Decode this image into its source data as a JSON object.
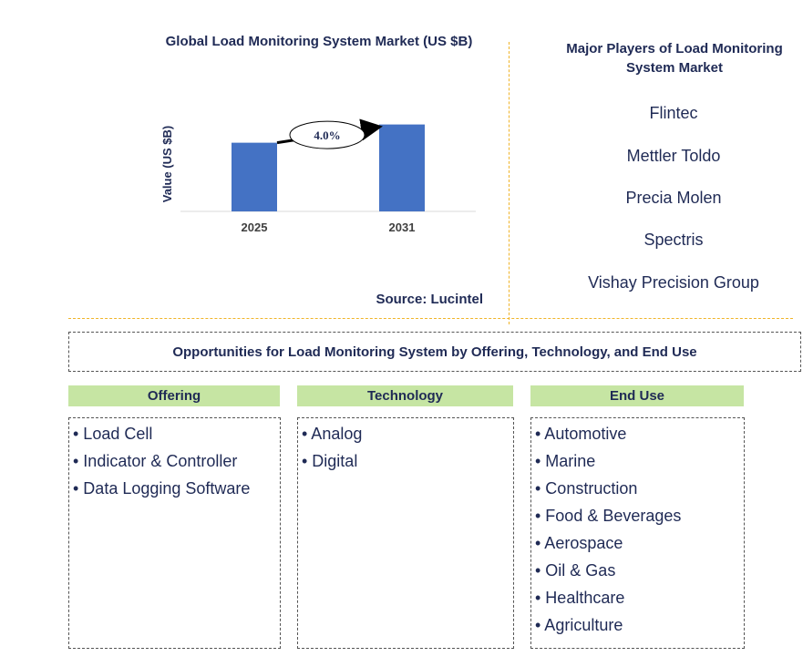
{
  "chart_data": {
    "type": "bar",
    "title": "Global Load Monitoring System Market (US $B)",
    "ylabel": "Value (US $B)",
    "categories": [
      "2025",
      "2031"
    ],
    "values": [
      6.4,
      8.1
    ],
    "ylim": [
      0,
      9
    ],
    "annotation": "4.0%",
    "bar_color": "#4472c4",
    "source": "Source: Lucintel"
  },
  "players": {
    "title": "Major Players of Load Monitoring System Market",
    "items": [
      "Flintec",
      "Mettler Toldo",
      "Precia Molen",
      "Spectris",
      "Vishay Precision Group"
    ]
  },
  "opportunities": {
    "title": "Opportunities for Load Monitoring System by Offering, Technology, and End Use",
    "columns": [
      {
        "header": "Offering",
        "items": [
          "• Load Cell",
          "• Indicator & Controller",
          "• Data Logging Software"
        ]
      },
      {
        "header": "Technology",
        "items": [
          "• Analog",
          "• Digital"
        ]
      },
      {
        "header": "End Use",
        "items": [
          "• Automotive",
          "• Marine",
          "• Construction",
          "• Food & Beverages",
          "• Aerospace",
          "• Oil & Gas",
          "• Healthcare",
          "• Agriculture"
        ]
      }
    ]
  },
  "colors": {
    "text": "#1f2a55",
    "bar": "#4472c4",
    "header_fill": "#c6e5a3",
    "divider": "#f0b429"
  }
}
